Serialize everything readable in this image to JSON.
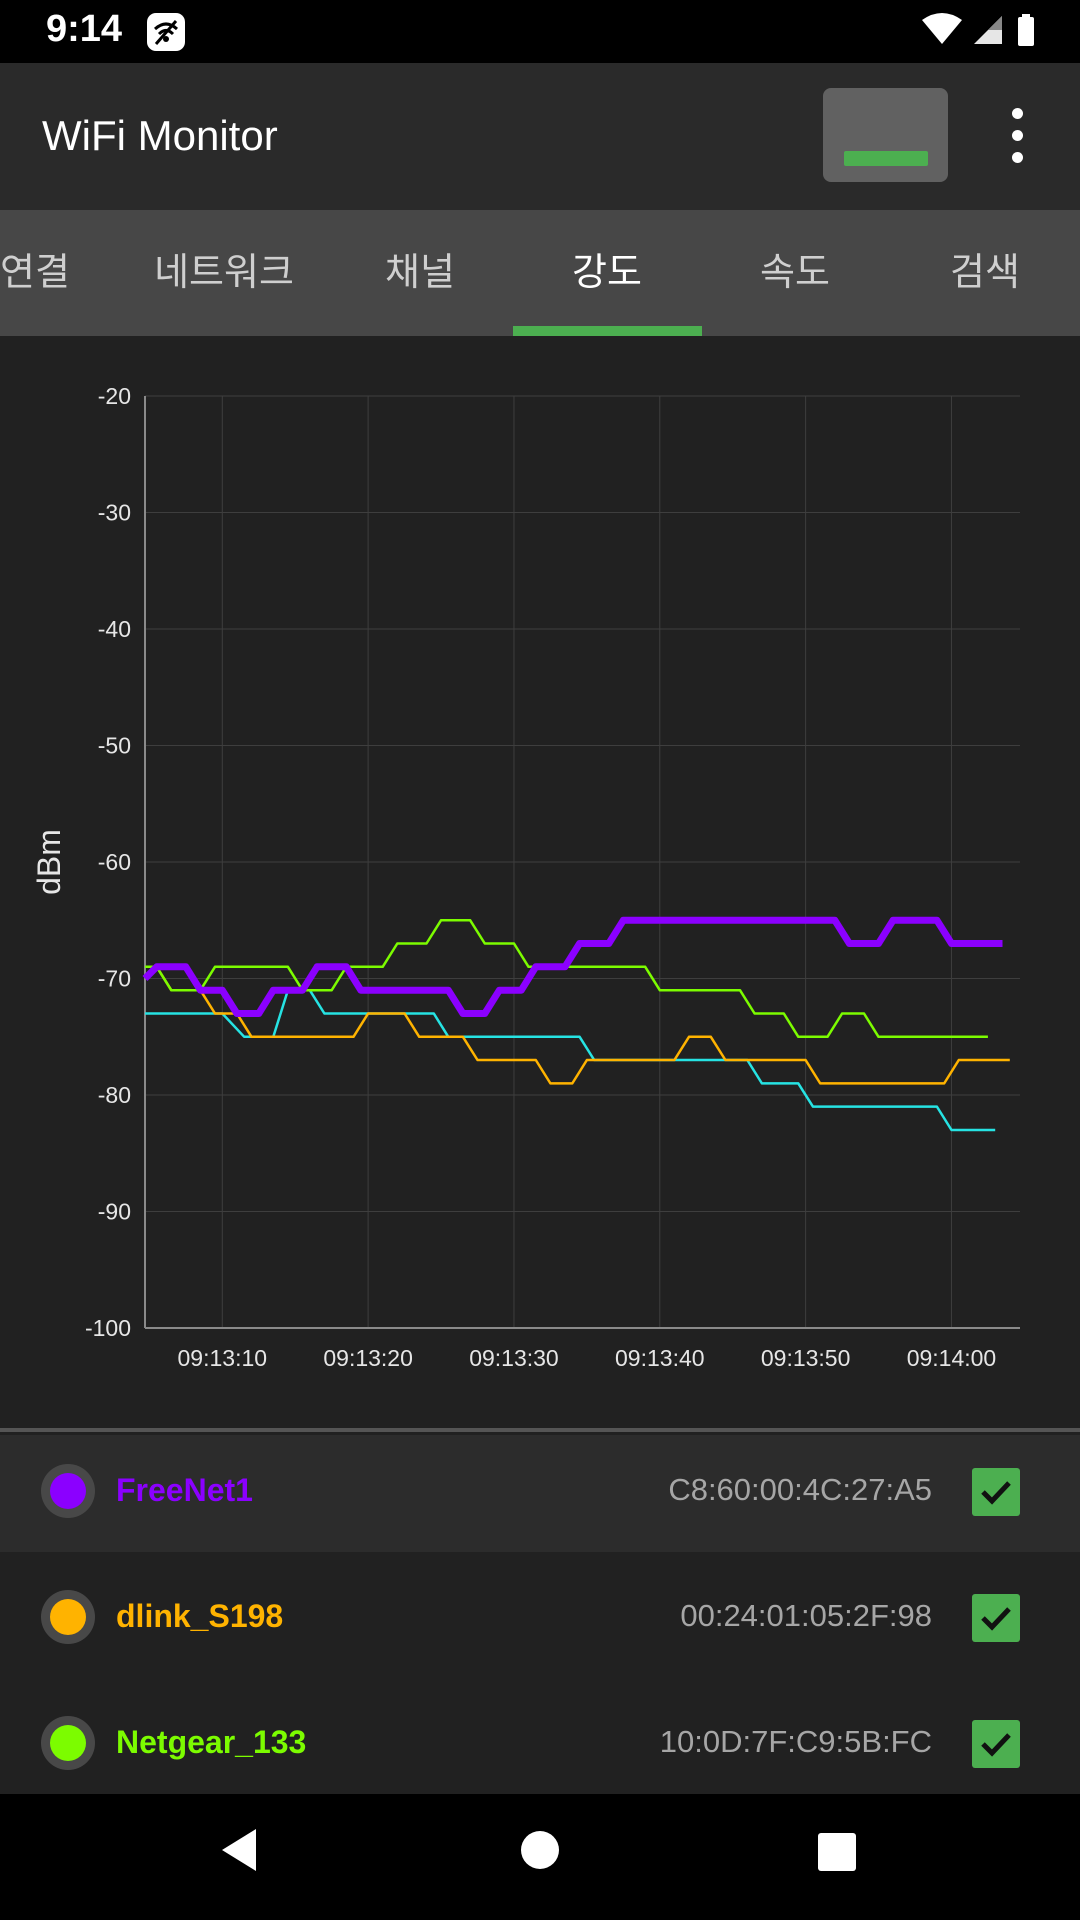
{
  "status_bar": {
    "time": "9:14",
    "icons": [
      "wifi-monitor-notification-icon",
      "wifi-signal-icon",
      "cell-signal-icon",
      "battery-icon"
    ]
  },
  "app_bar": {
    "title": "WiFi Monitor",
    "icons": [
      "signal-strength-icon",
      "more-vert-icon"
    ]
  },
  "tabs": [
    {
      "label": "연결",
      "active": false
    },
    {
      "label": "네트워크",
      "active": false
    },
    {
      "label": "채널",
      "active": false
    },
    {
      "label": "강도",
      "active": true
    },
    {
      "label": "속도",
      "active": false
    },
    {
      "label": "검색",
      "active": false
    }
  ],
  "chart_data": {
    "type": "line",
    "title": "",
    "xlabel": "",
    "ylabel": "dBm",
    "ylim": [
      -100,
      -20
    ],
    "y_ticks": [
      "-20",
      "-30",
      "-40",
      "-50",
      "-60",
      "-70",
      "-80",
      "-90",
      "-100"
    ],
    "x_range": [
      "09:13:04.7",
      "09:14:04.7"
    ],
    "x_ticks": [
      "09:13:10",
      "09:13:20",
      "09:13:30",
      "09:13:40",
      "09:13:50",
      "09:14:00"
    ],
    "grid": true,
    "series": [
      {
        "name": "FreeNet1",
        "color": "#8b00ff",
        "x": [
          "09:13:04.7",
          "09:13:05.5",
          "09:13:07.5",
          "09:13:08.5",
          "09:13:10",
          "09:13:11",
          "09:13:12.5",
          "09:13:13.5",
          "09:13:15.5",
          "09:13:16.5",
          "09:13:18.5",
          "09:13:19.5",
          "09:13:22.5",
          "09:13:23.5",
          "09:13:25.5",
          "09:13:26.5",
          "09:13:28",
          "09:13:29",
          "09:13:30.5",
          "09:13:31.5",
          "09:13:33.5",
          "09:13:34.5",
          "09:13:36.5",
          "09:13:37.5",
          "09:13:52",
          "09:13:53",
          "09:13:55",
          "09:13:56",
          "09:13:59",
          "09:14:00",
          "09:14:03.5"
        ],
        "y": [
          -70,
          -69,
          -69,
          -71,
          -71,
          -73,
          -73,
          -71,
          -71,
          -69,
          -69,
          -71,
          -71,
          -71,
          -71,
          -73,
          -73,
          -71,
          -71,
          -69,
          -69,
          -67,
          -67,
          -65,
          -65,
          -67,
          -67,
          -65,
          -65,
          -67,
          -67
        ]
      },
      {
        "name": "dlink_S198",
        "color": "#ffb300",
        "x": [
          "09:13:04.7",
          "09:13:05.5",
          "09:13:06.5",
          "09:13:08.5",
          "09:13:09.5",
          "09:13:11",
          "09:13:12",
          "09:13:19",
          "09:13:20",
          "09:13:21.5",
          "09:13:22.5",
          "09:13:23.5",
          "09:13:24.5",
          "09:13:26.5",
          "09:13:27.5",
          "09:13:31.5",
          "09:13:32.5",
          "09:13:34",
          "09:13:35",
          "09:13:41",
          "09:13:42",
          "09:13:43.5",
          "09:13:44.5",
          "09:13:50",
          "09:13:51",
          "09:13:59.5",
          "09:14:00.5",
          "09:14:04"
        ],
        "y": [
          -69,
          -69,
          -71,
          -71,
          -73,
          -73,
          -75,
          -75,
          -73,
          -73,
          -73,
          -75,
          -75,
          -75,
          -77,
          -77,
          -79,
          -79,
          -77,
          -77,
          -75,
          -75,
          -77,
          -77,
          -79,
          -79,
          -77,
          -77
        ]
      },
      {
        "name": "Netgear_133",
        "color": "#7cfc00",
        "x": [
          "09:13:04.7",
          "09:13:05.5",
          "09:13:06.5",
          "09:13:08.5",
          "09:13:09.5",
          "09:13:14.5",
          "09:13:15.5",
          "09:13:17.5",
          "09:13:18.5",
          "09:13:21",
          "09:13:22",
          "09:13:24",
          "09:13:25",
          "09:13:27",
          "09:13:28",
          "09:13:30",
          "09:13:31",
          "09:13:39",
          "09:13:40",
          "09:13:45.5",
          "09:13:46.5",
          "09:13:48.5",
          "09:13:49.5",
          "09:13:51.5",
          "09:13:52.5",
          "09:13:54",
          "09:13:55",
          "09:14:02.5"
        ],
        "y": [
          -69,
          -69,
          -71,
          -71,
          -69,
          -69,
          -71,
          -71,
          -69,
          -69,
          -67,
          -67,
          -65,
          -65,
          -67,
          -67,
          -69,
          -69,
          -71,
          -71,
          -73,
          -73,
          -75,
          -75,
          -73,
          -73,
          -75,
          -75
        ]
      },
      {
        "name": "",
        "color": "#26e3e3",
        "x": [
          "09:13:04.7",
          "09:13:09",
          "09:13:10",
          "09:13:11.5",
          "09:13:12.5",
          "09:13:13.5",
          "09:13:14.5",
          "09:13:16",
          "09:13:17",
          "09:13:24.5",
          "09:13:25.5",
          "09:13:34.5",
          "09:13:35.5",
          "09:13:46",
          "09:13:47",
          "09:13:48.5",
          "09:13:49.5",
          "09:13:50.5",
          "09:13:51.5",
          "09:13:59",
          "09:14:00",
          "09:14:03"
        ],
        "y": [
          -73,
          -73,
          -73,
          -75,
          -75,
          -75,
          -71,
          -71,
          -73,
          -73,
          -75,
          -75,
          -77,
          -77,
          -79,
          -79,
          -79,
          -81,
          -81,
          -81,
          -83,
          -83
        ]
      }
    ]
  },
  "legend": [
    {
      "ssid": "FreeNet1",
      "bssid": "C8:60:00:4C:27:A5",
      "color": "#8b00ff",
      "checked": true,
      "selected": true
    },
    {
      "ssid": "dlink_S198",
      "bssid": "00:24:01:05:2F:98",
      "color": "#ffb300",
      "checked": true,
      "selected": false
    },
    {
      "ssid": "Netgear_133",
      "bssid": "10:0D:7F:C9:5B:FC",
      "color": "#7cfc00",
      "checked": true,
      "selected": false
    }
  ],
  "nav_bar": {
    "icons": [
      "back-icon",
      "home-icon",
      "recents-icon"
    ]
  }
}
